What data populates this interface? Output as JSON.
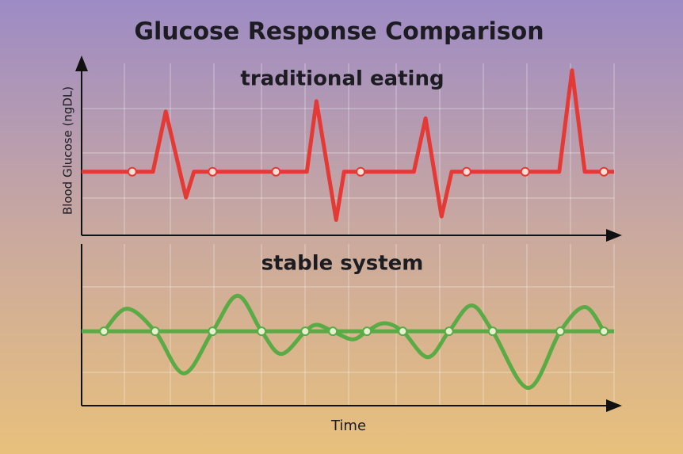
{
  "title": "Glucose Response Comparison",
  "y_label": "Blood Glucose (ngDL)",
  "x_label": "Time",
  "chart_data": [
    {
      "type": "line",
      "title": "traditional eating",
      "curve": "straight",
      "xlim": [
        0,
        100
      ],
      "ylim": [
        0,
        100
      ],
      "series": [
        {
          "color": "#e53935",
          "x": [
            0,
            13.4,
            15.8,
            19.6,
            21.1,
            42.3,
            44.1,
            47.8,
            49.3,
            62.4,
            64.6,
            67.6,
            69.5,
            89.7,
            92.1,
            94.5,
            100
          ],
          "values": [
            37,
            37,
            72,
            22,
            37,
            37,
            78,
            9,
            37,
            37,
            68,
            11,
            37,
            37,
            96,
            37,
            37
          ],
          "markers": {
            "x": [
              9.5,
              24.6,
              36.5,
              52.4,
              72.3,
              83.3,
              98.1
            ],
            "values": [
              37,
              37,
              37,
              37,
              37,
              37,
              37
            ]
          }
        }
      ]
    },
    {
      "type": "line",
      "title": "stable system",
      "curve": "smooth",
      "xlim": [
        0,
        100
      ],
      "ylim": [
        0,
        100
      ],
      "series": [
        {
          "color": "#5aab46",
          "x": [
            0,
            100
          ],
          "values": [
            46,
            46
          ]
        },
        {
          "color": "#5aab46",
          "x": [
            4.2,
            8.5,
            13.8,
            19.2,
            24.6,
            29.3,
            33.8,
            37.5,
            42,
            44.2,
            47.2,
            50.9,
            53.6,
            56.8,
            60.3,
            65,
            69,
            73.2,
            77.2,
            83.9,
            89.9,
            94.5,
            98.1
          ],
          "values": [
            46,
            60,
            46,
            20,
            46,
            68,
            46,
            32,
            46,
            50,
            46,
            41,
            46,
            51,
            46,
            30,
            46,
            62,
            46,
            11,
            46,
            61,
            46
          ],
          "markers": {
            "x": [
              4.2,
              13.8,
              24.6,
              33.8,
              42,
              47.2,
              53.6,
              60.3,
              69,
              77.2,
              89.9,
              98.1
            ],
            "values": [
              46,
              46,
              46,
              46,
              46,
              46,
              46,
              46,
              46,
              46,
              46,
              46
            ]
          }
        }
      ]
    }
  ]
}
